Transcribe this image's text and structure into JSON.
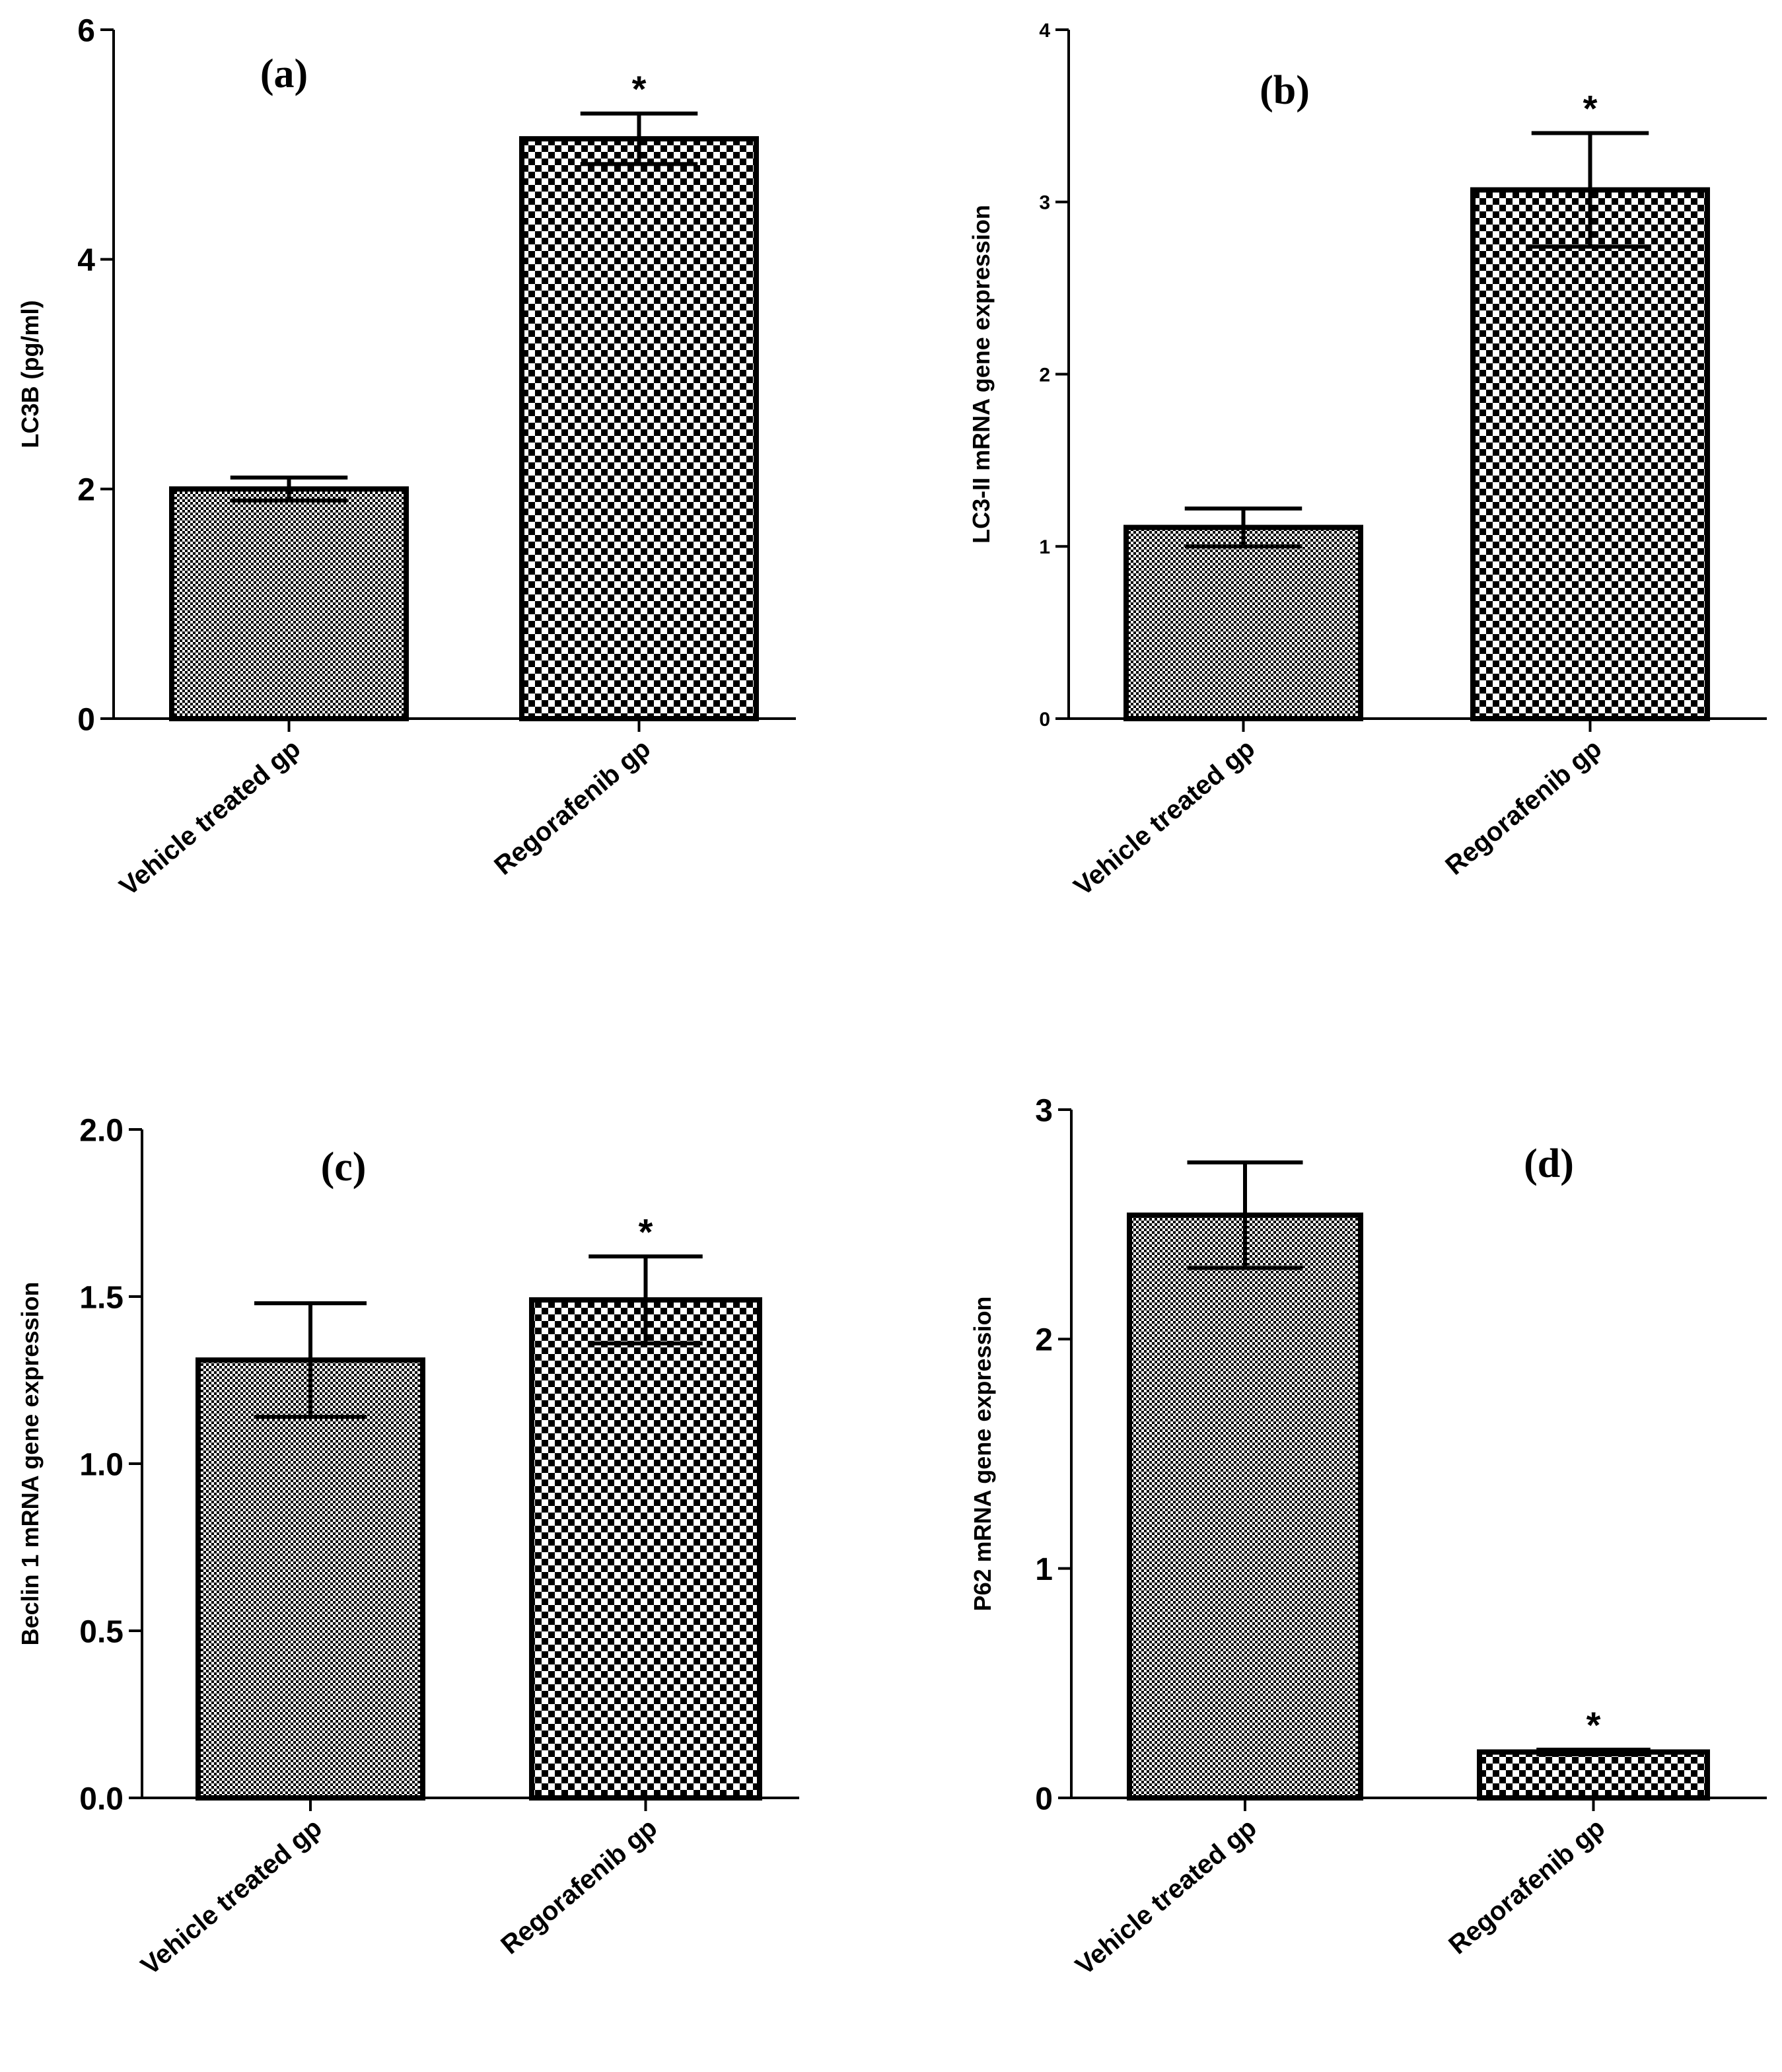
{
  "figure": {
    "colors": {
      "bar_edge": "#000000",
      "pattern_dark": "#000000",
      "pattern_light": "#ffffff"
    }
  },
  "chart_data": [
    {
      "type": "bar",
      "panel_label": "(a)",
      "ylabel": "LC3B (pg/ml)",
      "categories": [
        "Vehicle treated gp",
        "Regorafenib gp"
      ],
      "values": [
        2.0,
        5.05
      ],
      "errors": [
        0.1,
        0.22
      ],
      "significance": [
        "",
        "*"
      ],
      "ylim": [
        0,
        6
      ],
      "yticks": [
        0,
        2,
        4,
        6
      ],
      "ytick_labels": [
        "0",
        "2",
        "4",
        "6"
      ],
      "patterns": [
        "fine",
        "checker"
      ]
    },
    {
      "type": "bar",
      "panel_label": "(b)",
      "ylabel": "LC3-II mRNA gene expression",
      "categories": [
        "Vehicle treated gp",
        "Regorafenib gp"
      ],
      "values": [
        1.11,
        3.07
      ],
      "errors": [
        0.11,
        0.33
      ],
      "significance": [
        "",
        "*"
      ],
      "ylim": [
        0,
        4
      ],
      "yticks": [
        0,
        1,
        2,
        3,
        4
      ],
      "ytick_labels": [
        "0",
        "1",
        "2",
        "3",
        "4"
      ],
      "patterns": [
        "fine",
        "checker"
      ]
    },
    {
      "type": "bar",
      "panel_label": "(c)",
      "ylabel": "Beclin 1 mRNA gene expression",
      "categories": [
        "Vehicle treated gp",
        "Regorafenib gp"
      ],
      "values": [
        1.31,
        1.49
      ],
      "errors": [
        0.17,
        0.13
      ],
      "significance": [
        "",
        "*"
      ],
      "ylim": [
        0,
        2.0
      ],
      "yticks": [
        0,
        0.5,
        1.0,
        1.5,
        2.0
      ],
      "ytick_labels": [
        "0.0",
        "0.5",
        "1.0",
        "1.5",
        "2.0"
      ],
      "patterns": [
        "fine",
        "checker"
      ]
    },
    {
      "type": "bar",
      "panel_label": "(d)",
      "ylabel": "P62 mRNA gene expression",
      "categories": [
        "Vehicle treated gp",
        "Regorafenib gp"
      ],
      "values": [
        2.54,
        0.2
      ],
      "errors": [
        0.23,
        0.01
      ],
      "significance": [
        "",
        "*"
      ],
      "ylim": [
        0,
        3
      ],
      "yticks": [
        0,
        1,
        2,
        3
      ],
      "ytick_labels": [
        "0",
        "1",
        "2",
        "3"
      ],
      "patterns": [
        "fine",
        "checker"
      ]
    }
  ]
}
